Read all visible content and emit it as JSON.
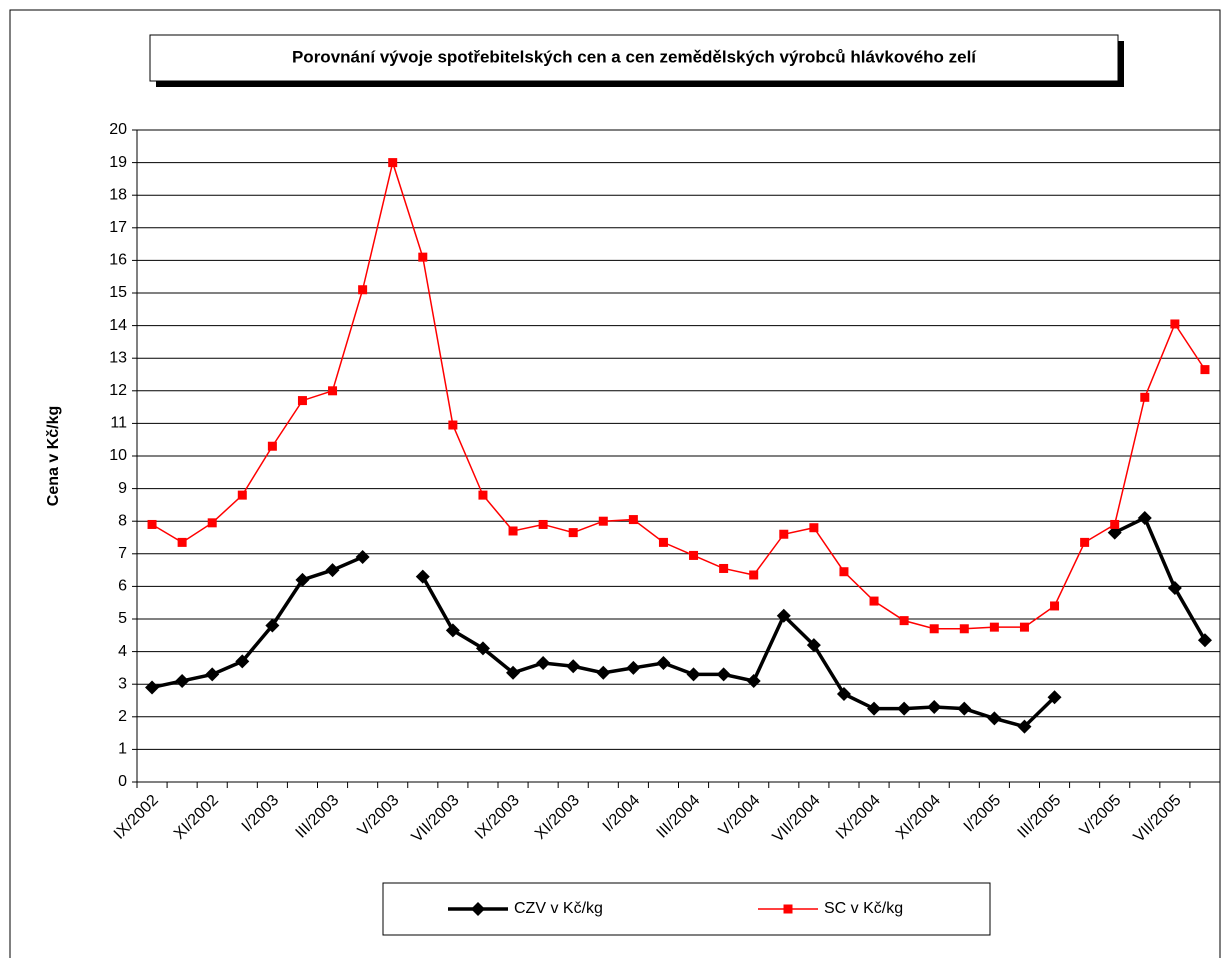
{
  "chart_data": {
    "type": "line",
    "title": "Porovnání vývoje spotřebitelských cen a cen zemědělských výrobců hlávkového zelí",
    "y_label": "Cena v Kč/kg",
    "categories": [
      "IX/2002",
      null,
      "XI/2002",
      null,
      "I/2003",
      null,
      "III/2003",
      null,
      "V/2003",
      null,
      "VII/2003",
      null,
      "IX/2003",
      null,
      "XI/2003",
      null,
      "I/2004",
      null,
      "III/2004",
      null,
      "V/2004",
      null,
      "VII/2004",
      null,
      "IX/2004",
      null,
      "XI/2004",
      null,
      "I/2005",
      null,
      "III/2005",
      null,
      "V/2005",
      null,
      "VII/2005",
      null
    ],
    "series": [
      {
        "name": "CZV v Kč/kg",
        "color": "#000000",
        "marker": "diamond",
        "values": [
          2.9,
          3.1,
          3.3,
          3.7,
          4.8,
          6.2,
          6.5,
          6.9,
          null,
          6.3,
          4.65,
          4.1,
          3.35,
          3.65,
          3.55,
          3.35,
          3.5,
          3.65,
          3.3,
          3.3,
          3.1,
          5.1,
          4.2,
          2.7,
          2.25,
          2.25,
          2.3,
          2.25,
          1.95,
          1.7,
          2.6,
          null,
          7.65,
          8.1,
          5.95,
          4.35
        ]
      },
      {
        "name": "SC v Kč/kg",
        "color": "#ff0000",
        "marker": "square",
        "values": [
          7.9,
          7.35,
          7.95,
          8.8,
          10.3,
          11.7,
          12.0,
          15.1,
          19.0,
          16.1,
          10.95,
          8.8,
          7.7,
          7.9,
          7.65,
          8.0,
          8.05,
          7.35,
          6.95,
          6.55,
          6.35,
          7.6,
          7.8,
          6.45,
          5.55,
          4.95,
          4.7,
          4.7,
          4.75,
          4.75,
          5.4,
          7.35,
          7.9,
          11.8,
          14.05,
          12.65
        ]
      }
    ],
    "ylim": [
      0,
      20
    ],
    "yticks": [
      0,
      1,
      2,
      3,
      4,
      5,
      6,
      7,
      8,
      9,
      10,
      11,
      12,
      13,
      14,
      15,
      16,
      17,
      18,
      19,
      20
    ],
    "grid": true,
    "legend": "bottom"
  }
}
